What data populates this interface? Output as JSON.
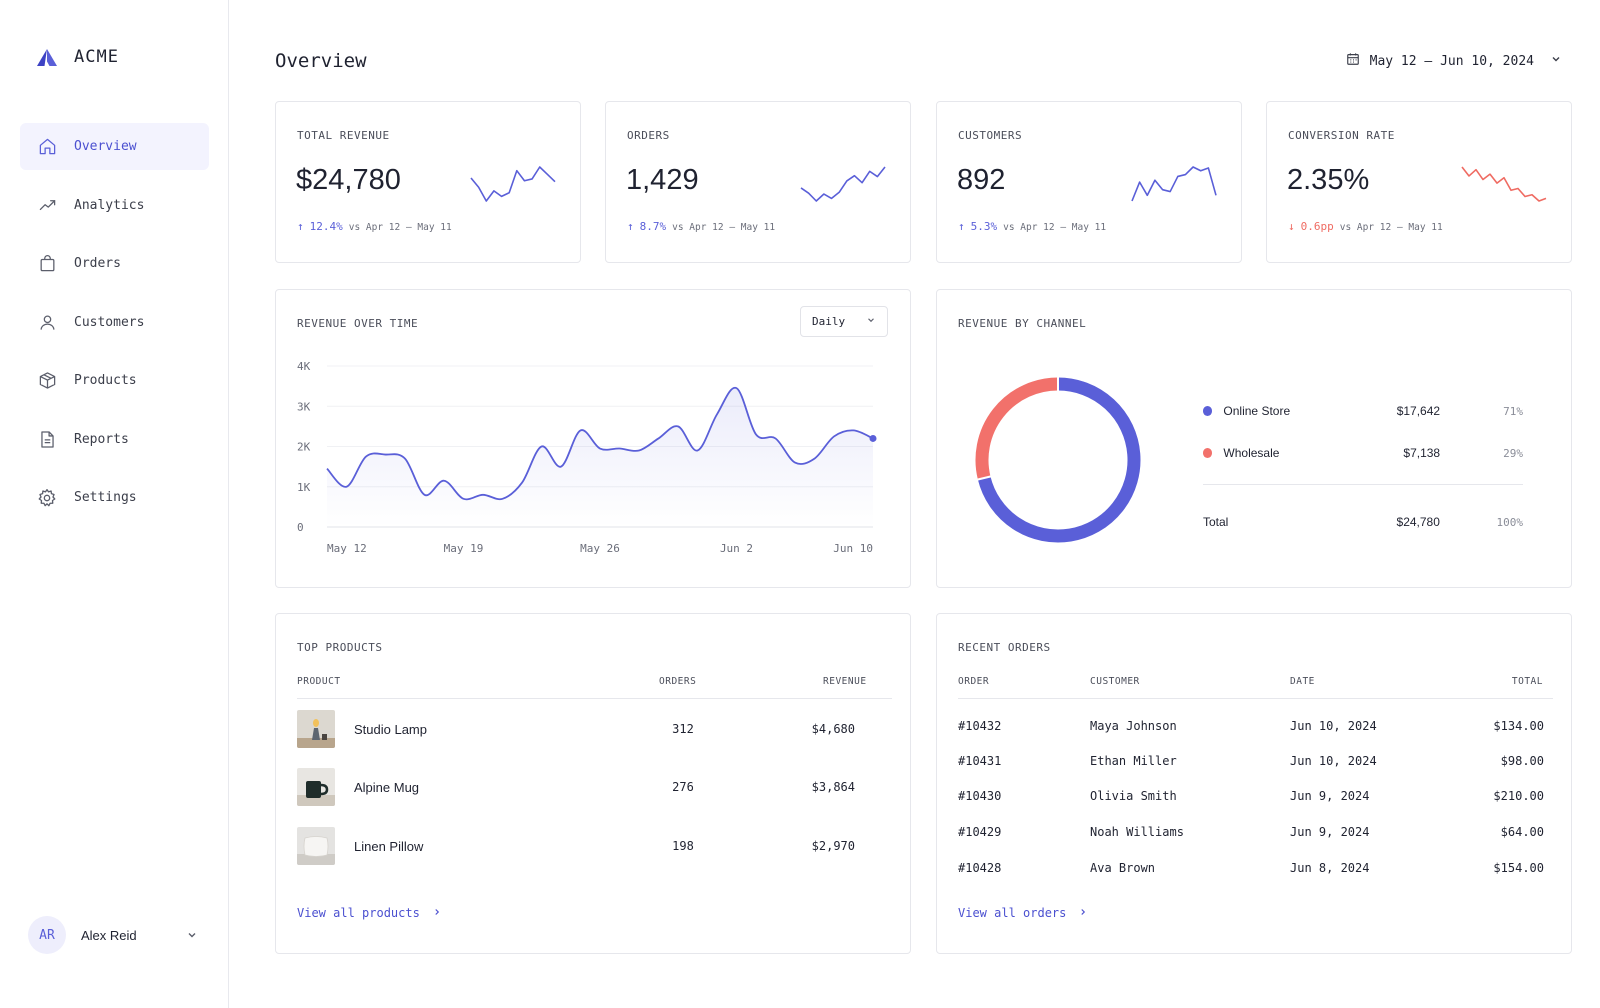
{
  "brand": {
    "name": "ACME"
  },
  "nav": [
    {
      "label": "Overview",
      "icon": "home-icon",
      "active": true
    },
    {
      "label": "Analytics",
      "icon": "trend-icon"
    },
    {
      "label": "Orders",
      "icon": "bag-icon"
    },
    {
      "label": "Customers",
      "icon": "user-icon"
    },
    {
      "label": "Products",
      "icon": "box-icon"
    },
    {
      "label": "Reports",
      "icon": "document-icon"
    },
    {
      "label": "Settings",
      "icon": "gear-icon"
    }
  ],
  "user": {
    "initials": "AR",
    "name": "Alex Reid"
  },
  "header": {
    "title": "Overview",
    "date_range": "May 12 – Jun 10, 2024"
  },
  "colors": {
    "accent": "#5a5fd8",
    "negative": "#ef6b62",
    "online_store": "#5a5fd8",
    "wholesale": "#f2716b"
  },
  "kpis": [
    {
      "label": "TOTAL REVENUE",
      "value": "$24,780",
      "delta": "12.4%",
      "direction": "up",
      "compare": "vs Apr 12 – May 11",
      "spark": [
        3,
        2,
        0.5,
        1.6,
        1,
        1.4,
        3.8,
        2.7,
        2.9,
        4.2,
        3.4,
        2.6
      ]
    },
    {
      "label": "ORDERS",
      "value": "1,429",
      "delta": "8.7%",
      "direction": "up",
      "compare": "vs Apr 12 – May 11",
      "spark": [
        1.8,
        1.2,
        0.3,
        1.1,
        0.6,
        1.3,
        2.6,
        3.2,
        2.4,
        3.7,
        3.1,
        4.2
      ]
    },
    {
      "label": "CUSTOMERS",
      "value": "892",
      "delta": "5.3%",
      "direction": "up",
      "compare": "vs Apr 12 – May 11",
      "spark": [
        0.6,
        2.6,
        1.2,
        2.8,
        1.8,
        1.6,
        3.2,
        3.4,
        4.2,
        3.8,
        4.1,
        1.2
      ]
    },
    {
      "label": "CONVERSION RATE",
      "value": "2.35%",
      "delta": "0.6pp",
      "direction": "down",
      "compare": "vs Apr 12 – May 11",
      "spark": [
        4.2,
        3.2,
        3.9,
        2.8,
        3.4,
        2.4,
        3.0,
        1.6,
        1.8,
        0.9,
        1.1,
        0.4,
        0.7
      ]
    }
  ],
  "revenue_chart": {
    "title": "REVENUE OVER TIME",
    "granularity": "Daily",
    "chart_data": {
      "type": "area",
      "x_labels": [
        "May 12",
        "May 19",
        "May 26",
        "Jun 2",
        "Jun 10"
      ],
      "y_ticks": [
        "0",
        "1K",
        "2K",
        "3K",
        "4K"
      ],
      "ylim": [
        0,
        4000
      ],
      "values": [
        1450,
        1000,
        1750,
        1800,
        1700,
        800,
        1150,
        700,
        800,
        700,
        1100,
        2000,
        1500,
        2400,
        1950,
        1950,
        1900,
        2200,
        2500,
        1900,
        2800,
        3450,
        2300,
        2200,
        1600,
        1700,
        2250,
        2400,
        2200
      ]
    }
  },
  "channel_chart": {
    "title": "REVENUE BY CHANNEL",
    "chart_data": {
      "type": "pie",
      "slices": [
        {
          "name": "Online Store",
          "value": 17642,
          "display": "$17,642",
          "pct": "71%"
        },
        {
          "name": "Wholesale",
          "value": 7138,
          "display": "$7,138",
          "pct": "29%"
        }
      ],
      "total": {
        "label": "Total",
        "display": "$24,780",
        "pct": "100%"
      }
    }
  },
  "top_products": {
    "title": "TOP PRODUCTS",
    "columns": [
      "PRODUCT",
      "ORDERS",
      "REVENUE"
    ],
    "rows": [
      {
        "name": "Studio Lamp",
        "orders": "312",
        "revenue": "$4,680",
        "thumb": "lamp"
      },
      {
        "name": "Alpine Mug",
        "orders": "276",
        "revenue": "$3,864",
        "thumb": "mug"
      },
      {
        "name": "Linen Pillow",
        "orders": "198",
        "revenue": "$2,970",
        "thumb": "pillow"
      }
    ],
    "link": "View all products"
  },
  "recent_orders": {
    "title": "RECENT ORDERS",
    "columns": [
      "ORDER",
      "CUSTOMER",
      "DATE",
      "TOTAL"
    ],
    "rows": [
      {
        "order": "#10432",
        "customer": "Maya Johnson",
        "date": "Jun 10, 2024",
        "total": "$134.00"
      },
      {
        "order": "#10431",
        "customer": "Ethan Miller",
        "date": "Jun 10, 2024",
        "total": "$98.00"
      },
      {
        "order": "#10430",
        "customer": "Olivia Smith",
        "date": "Jun 9, 2024",
        "total": "$210.00"
      },
      {
        "order": "#10429",
        "customer": "Noah Williams",
        "date": "Jun 9, 2024",
        "total": "$64.00"
      },
      {
        "order": "#10428",
        "customer": "Ava Brown",
        "date": "Jun 8, 2024",
        "total": "$154.00"
      }
    ],
    "link": "View all orders"
  }
}
